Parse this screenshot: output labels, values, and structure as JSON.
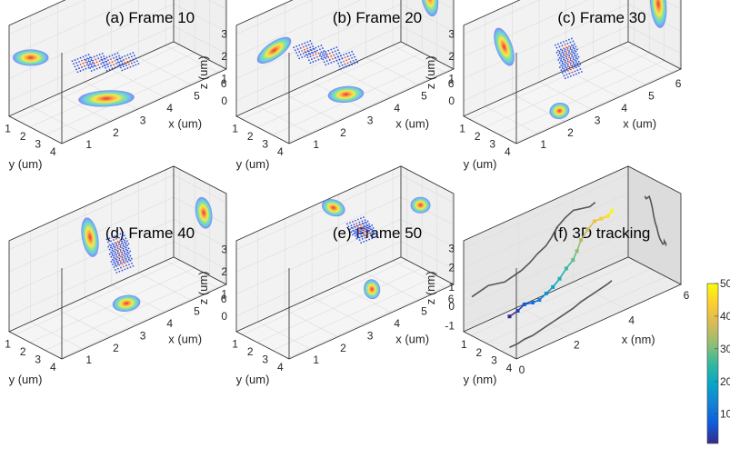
{
  "chart_data": [
    {
      "type": "scatter",
      "title": "(a) Frame 10",
      "xlabel": "x (um)",
      "ylabel": "y (um)",
      "zlabel": "z (um)",
      "xticks": [
        "1",
        "2",
        "3",
        "4",
        "5",
        "6"
      ],
      "yticks": [
        "1",
        "2",
        "3",
        "4"
      ],
      "zticks": [
        "0",
        "1",
        "2",
        "3"
      ],
      "points": [
        {
          "x": 2.9,
          "y": 1.6,
          "z": 0.6
        },
        {
          "x": 3.3,
          "y": 1.9,
          "z": 0.5
        },
        {
          "x": 3.7,
          "y": 2.2,
          "z": 0.4
        },
        {
          "x": 2.5,
          "y": 1.4,
          "z": 0.7
        }
      ],
      "proj_xy": [
        {
          "x": 2.8,
          "y": 2.4,
          "l": 1.4,
          "ang": -3
        }
      ],
      "proj_xz": [
        {
          "x": 1.0,
          "z": 1.5,
          "l": 0.9,
          "ang": 0
        }
      ],
      "proj_yz": [
        {
          "y": 2.3,
          "z": 2.5,
          "l": 0.7,
          "ang": 70
        }
      ]
    },
    {
      "type": "scatter",
      "title": "(b) Frame 20",
      "xlabel": "x (um)",
      "ylabel": "y (um)",
      "zlabel": "z (um)",
      "xticks": [
        "1",
        "2",
        "3",
        "4",
        "5",
        "6"
      ],
      "yticks": [
        "1",
        "2",
        "3",
        "4"
      ],
      "zticks": [
        "0",
        "1",
        "2",
        "3"
      ],
      "points": [
        {
          "x": 2.7,
          "y": 1.4,
          "z": 1.0
        },
        {
          "x": 3.1,
          "y": 1.7,
          "z": 0.8
        },
        {
          "x": 3.5,
          "y": 2.0,
          "z": 0.5
        },
        {
          "x": 2.4,
          "y": 1.2,
          "z": 1.3
        }
      ],
      "proj_xy": [
        {
          "x": 3.2,
          "y": 2.5,
          "l": 0.9,
          "ang": -5
        }
      ],
      "proj_xz": [
        {
          "x": 1.6,
          "z": 1.5,
          "l": 1.0,
          "ang": -35
        }
      ],
      "proj_yz": [
        {
          "y": 2.5,
          "z": 2.0,
          "l": 1.0,
          "ang": 80
        }
      ]
    },
    {
      "type": "scatter",
      "title": "(c) Frame 30",
      "xlabel": "x (um)",
      "ylabel": "y (um)",
      "zlabel": "z (um)",
      "xticks": [
        "1",
        "2",
        "3",
        "4",
        "5",
        "6"
      ],
      "yticks": [
        "1",
        "2",
        "3",
        "4"
      ],
      "zticks": [
        "0",
        "1",
        "2",
        "3"
      ],
      "points": [
        {
          "x": 3.0,
          "y": 2.5,
          "z": 1.2
        },
        {
          "x": 3.0,
          "y": 2.6,
          "z": 0.9
        },
        {
          "x": 3.0,
          "y": 2.7,
          "z": 0.6
        },
        {
          "x": 3.0,
          "y": 2.4,
          "z": 1.5
        }
      ],
      "proj_xy": [
        {
          "x": 2.3,
          "y": 3.2,
          "l": 0.5,
          "ang": -10
        }
      ],
      "proj_xz": [
        {
          "x": 1.7,
          "z": 1.6,
          "l": 1.0,
          "ang": 70
        }
      ],
      "proj_yz": [
        {
          "y": 2.6,
          "z": 1.7,
          "l": 1.2,
          "ang": 85
        }
      ]
    },
    {
      "type": "scatter",
      "title": "(d) Frame 40",
      "xlabel": "x (um)",
      "ylabel": "y (um)",
      "zlabel": "z (um)",
      "xticks": [
        "1",
        "2",
        "3",
        "4",
        "5",
        "6"
      ],
      "yticks": [
        "1",
        "2",
        "3",
        "4"
      ],
      "zticks": [
        "0",
        "1",
        "2",
        "3"
      ],
      "points": [
        {
          "x": 3.5,
          "y": 2.0,
          "z": 1.7
        },
        {
          "x": 3.5,
          "y": 2.1,
          "z": 1.4
        },
        {
          "x": 3.5,
          "y": 2.2,
          "z": 1.1
        },
        {
          "x": 3.5,
          "y": 1.9,
          "z": 2.0
        }
      ],
      "proj_xy": [
        {
          "x": 3.6,
          "y": 2.3,
          "l": 0.7,
          "ang": -8
        }
      ],
      "proj_xz": [
        {
          "x": 3.2,
          "z": 1.9,
          "l": 1.0,
          "ang": 80
        }
      ],
      "proj_yz": [
        {
          "y": 2.6,
          "z": 2.0,
          "l": 0.8,
          "ang": 80
        }
      ]
    },
    {
      "type": "scatter",
      "title": "(e) Frame 50",
      "xlabel": "x (um)",
      "ylabel": "y (um)",
      "zlabel": "z (um)",
      "xticks": [
        "1",
        "2",
        "3",
        "4",
        "5",
        "6"
      ],
      "yticks": [
        "1",
        "2",
        "3",
        "4"
      ],
      "zticks": [
        "0",
        "1",
        "2",
        "3"
      ],
      "points": [
        {
          "x": 4.2,
          "y": 1.8,
          "z": 2.1
        },
        {
          "x": 4.3,
          "y": 1.9,
          "z": 1.9
        },
        {
          "x": 4.1,
          "y": 1.7,
          "z": 2.3
        }
      ],
      "proj_xy": [
        {
          "x": 4.5,
          "y": 1.9,
          "l": 0.5,
          "ang": 80
        }
      ],
      "proj_xz": [
        {
          "x": 3.8,
          "z": 2.9,
          "l": 0.6,
          "ang": 20
        }
      ],
      "proj_yz": [
        {
          "y": 1.9,
          "z": 2.1,
          "l": 0.5,
          "ang": 0
        }
      ]
    },
    {
      "type": "line",
      "title": "(f) 3D tracking",
      "xlabel": "x (nm)",
      "ylabel": "y (nm)",
      "zlabel": "z (nm)",
      "xticks": [
        "0",
        "2",
        "4",
        "6"
      ],
      "yticks": [
        "1",
        "2",
        "3",
        "4"
      ],
      "zticks": [
        "-1",
        "0",
        "1",
        "2",
        "3"
      ],
      "colorbar": {
        "ticks": [
          "10",
          "20",
          "30",
          "40",
          "50"
        ],
        "range": [
          1,
          50
        ]
      },
      "trajectory": [
        {
          "x": 0.3,
          "y": 3.0,
          "z": 0.3
        },
        {
          "x": 0.6,
          "y": 3.0,
          "z": 0.4
        },
        {
          "x": 0.9,
          "y": 2.9,
          "z": 0.5
        },
        {
          "x": 1.2,
          "y": 2.9,
          "z": 0.4
        },
        {
          "x": 1.5,
          "y": 2.8,
          "z": 0.3
        },
        {
          "x": 1.8,
          "y": 2.7,
          "z": 0.4
        },
        {
          "x": 2.1,
          "y": 2.6,
          "z": 0.5
        },
        {
          "x": 2.4,
          "y": 2.5,
          "z": 0.7
        },
        {
          "x": 2.7,
          "y": 2.4,
          "z": 1.0
        },
        {
          "x": 3.0,
          "y": 2.3,
          "z": 1.2
        },
        {
          "x": 3.2,
          "y": 2.2,
          "z": 1.5
        },
        {
          "x": 3.4,
          "y": 2.1,
          "z": 1.9
        },
        {
          "x": 3.7,
          "y": 2.0,
          "z": 2.2
        },
        {
          "x": 4.0,
          "y": 1.9,
          "z": 2.4
        },
        {
          "x": 4.3,
          "y": 1.8,
          "z": 2.3
        },
        {
          "x": 4.6,
          "y": 1.7,
          "z": 2.2
        },
        {
          "x": 4.8,
          "y": 1.6,
          "z": 2.3
        }
      ]
    }
  ]
}
